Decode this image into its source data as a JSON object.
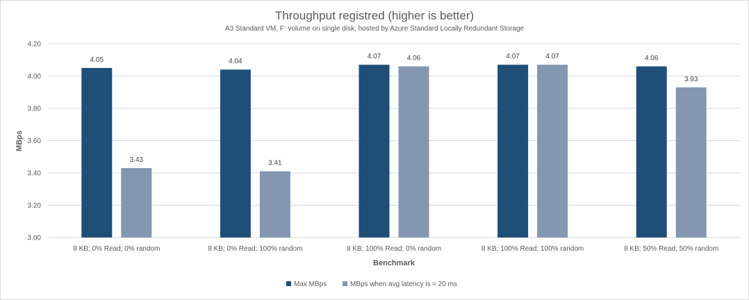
{
  "chart_data": {
    "type": "bar",
    "title": "Throughput registred (higher is better)",
    "subtitle": "A3 Standard VM, F: volume on single disk, hosted by Azure Standard Locally Redundant Storage",
    "xlabel": "Benchmark",
    "ylabel": "MBps",
    "ylim": [
      3.0,
      4.2
    ],
    "yticks": [
      "3.00",
      "3.20",
      "3.40",
      "3.60",
      "3.80",
      "4.00",
      "4.20"
    ],
    "grid": true,
    "legend_position": "bottom",
    "categories": [
      "8 KB; 0% Read; 0% random",
      "8 KB; 0% Read; 100% random",
      "8 KB; 100% Read; 0% random",
      "8 KB; 100% Read; 100% random",
      "8 KB; 50% Read; 50% random"
    ],
    "series": [
      {
        "name": "Max MBps",
        "color": "#1f4e79",
        "values": [
          4.05,
          4.04,
          4.07,
          4.07,
          4.06
        ],
        "labels": [
          "4.05",
          "4.04",
          "4.07",
          "4.07",
          "4.06"
        ]
      },
      {
        "name": "MBps when avg latency is ≈ 20 ms",
        "color": "#8497b0",
        "values": [
          3.43,
          3.41,
          4.06,
          4.07,
          3.93
        ],
        "labels": [
          "3.43",
          "3.41",
          "4.06",
          "4.07",
          "3.93"
        ]
      }
    ]
  }
}
